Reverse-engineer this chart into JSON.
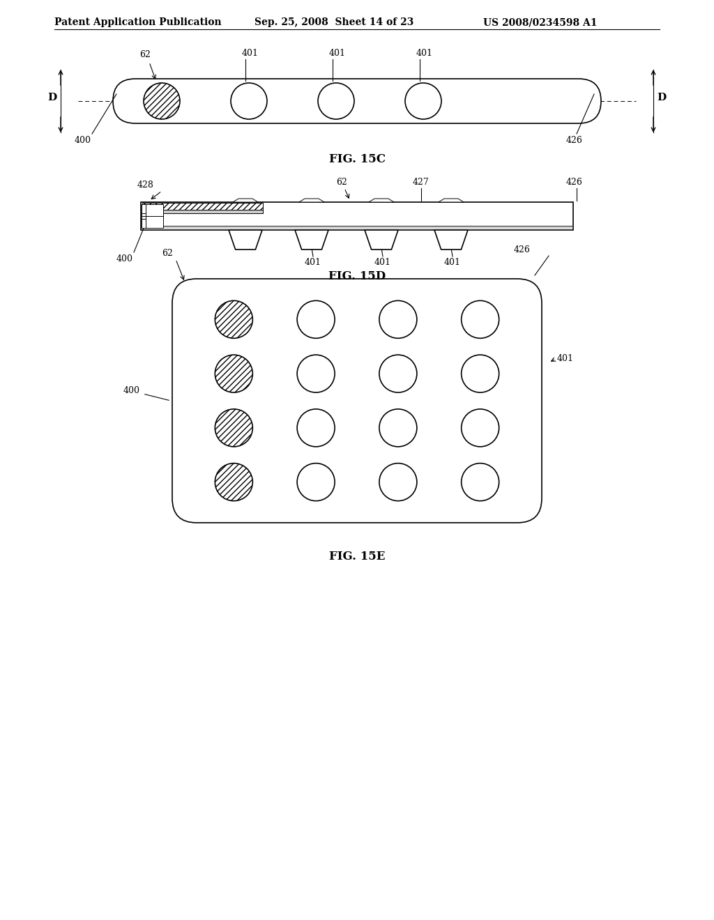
{
  "background_color": "#ffffff",
  "header_text": "Patent Application Publication",
  "header_date": "Sep. 25, 2008  Sheet 14 of 23",
  "header_patent": "US 2008/0234598 A1",
  "fig_15c_label": "FIG. 15C",
  "fig_15d_label": "FIG. 15D",
  "fig_15e_label": "FIG. 15E",
  "line_color": "#000000",
  "line_width": 1.2,
  "thin_line": 0.7
}
